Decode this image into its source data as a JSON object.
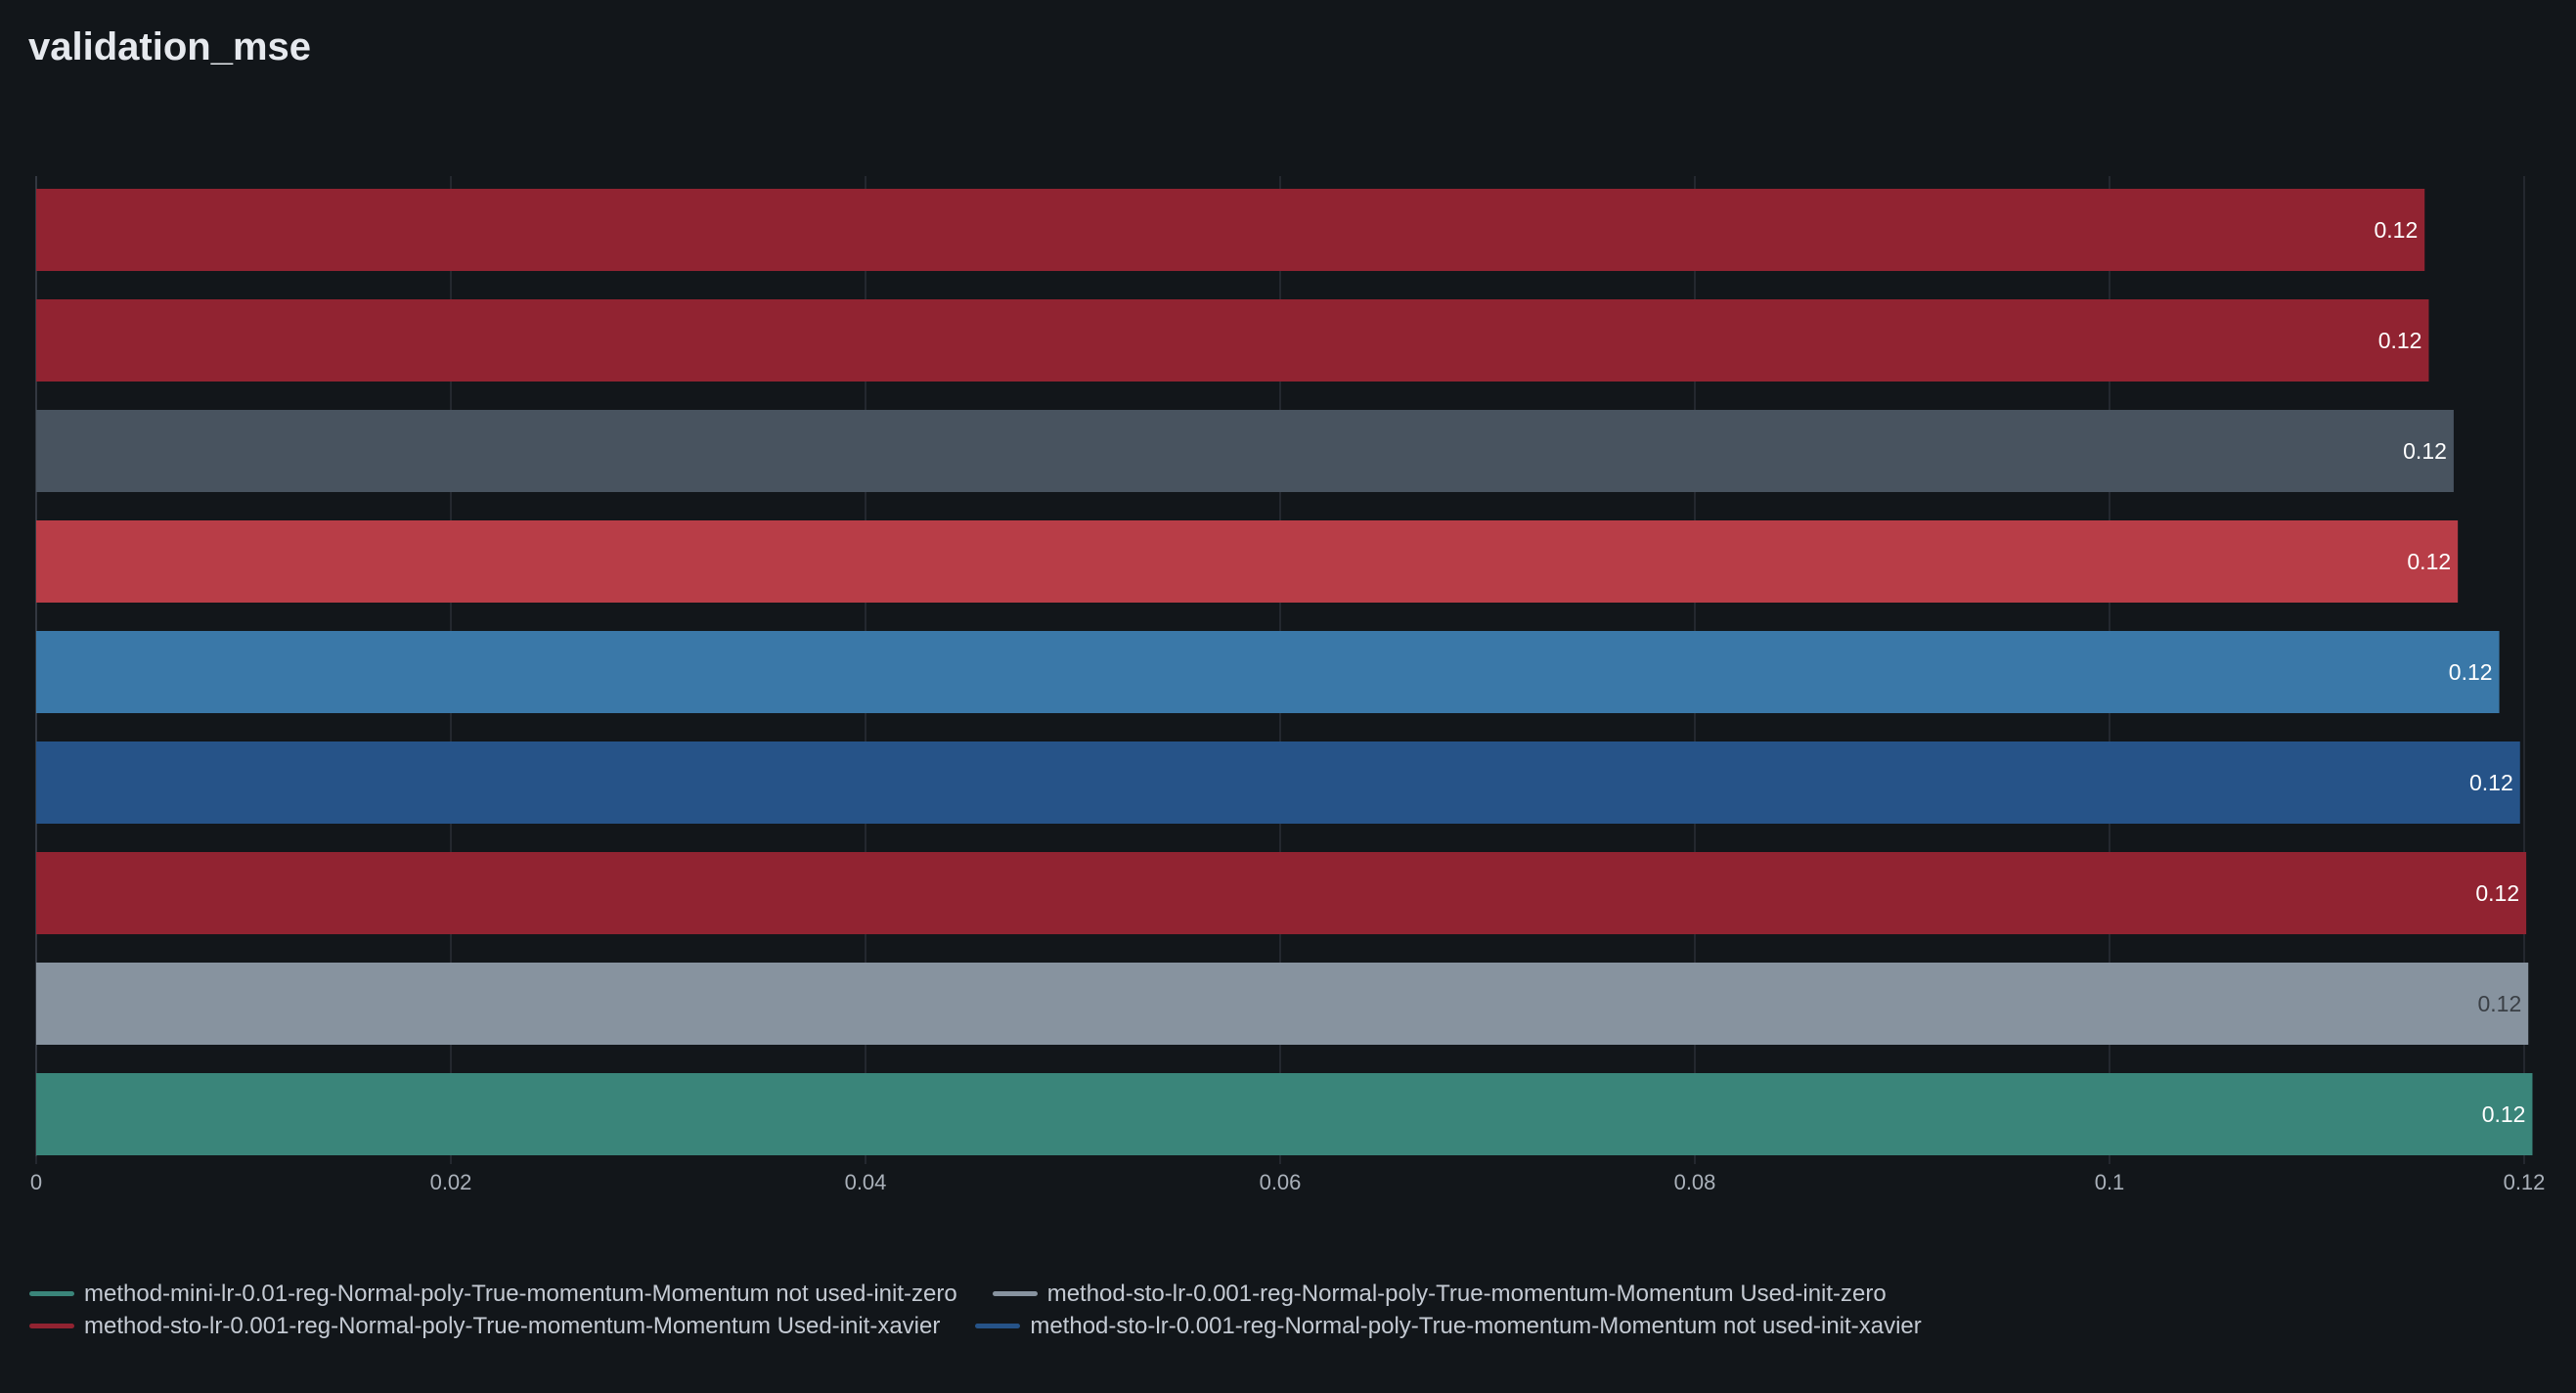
{
  "chart_data": {
    "type": "bar",
    "orientation": "horizontal",
    "title": "validation_mse",
    "xlabel": "",
    "ylabel": "",
    "xlim": [
      0,
      0.12
    ],
    "x_ticks": [
      "0",
      "0.02",
      "0.04",
      "0.06",
      "0.08",
      "0.1",
      "0.12"
    ],
    "x_tick_values": [
      0,
      0.02,
      0.04,
      0.06,
      0.08,
      0.1,
      0.12
    ],
    "grid": true,
    "legend_position": "bottom-left",
    "bars": [
      {
        "value": 0.1152,
        "label": "0.12",
        "color": "#912331",
        "label_color": "#ffffff"
      },
      {
        "value": 0.1154,
        "label": "0.12",
        "color": "#912331",
        "label_color": "#ffffff"
      },
      {
        "value": 0.1166,
        "label": "0.12",
        "color": "#48535f",
        "label_color": "#ffffff"
      },
      {
        "value": 0.1168,
        "label": "0.12",
        "color": "#b83d47",
        "label_color": "#ffffff"
      },
      {
        "value": 0.1188,
        "label": "0.12",
        "color": "#3a78a8",
        "label_color": "#ffffff"
      },
      {
        "value": 0.1198,
        "label": "0.12",
        "color": "#265388",
        "label_color": "#ffffff"
      },
      {
        "value": 0.1201,
        "label": "0.12",
        "color": "#912331",
        "label_color": "#ffffff"
      },
      {
        "value": 0.1202,
        "label": "0.12",
        "color": "#87939f",
        "label_color": "#3a3f45"
      },
      {
        "value": 0.1204,
        "label": "0.12",
        "color": "#3a857a",
        "label_color": "#ffffff"
      }
    ]
  },
  "legend": [
    [
      {
        "label": "method-mini-lr-0.01-reg-Normal-poly-True-momentum-Momentum not used-init-zero",
        "color": "#3a857a"
      },
      {
        "label": "method-sto-lr-0.001-reg-Normal-poly-True-momentum-Momentum Used-init-zero",
        "color": "#87939f"
      }
    ],
    [
      {
        "label": "method-sto-lr-0.001-reg-Normal-poly-True-momentum-Momentum Used-init-xavier",
        "color": "#912331"
      },
      {
        "label": "method-sto-lr-0.001-reg-Normal-poly-True-momentum-Momentum not used-init-xavier",
        "color": "#265388"
      }
    ]
  ],
  "colors": {
    "background": "#12161a",
    "grid": "#2a2f36",
    "tick_text": "#aab1ba"
  }
}
